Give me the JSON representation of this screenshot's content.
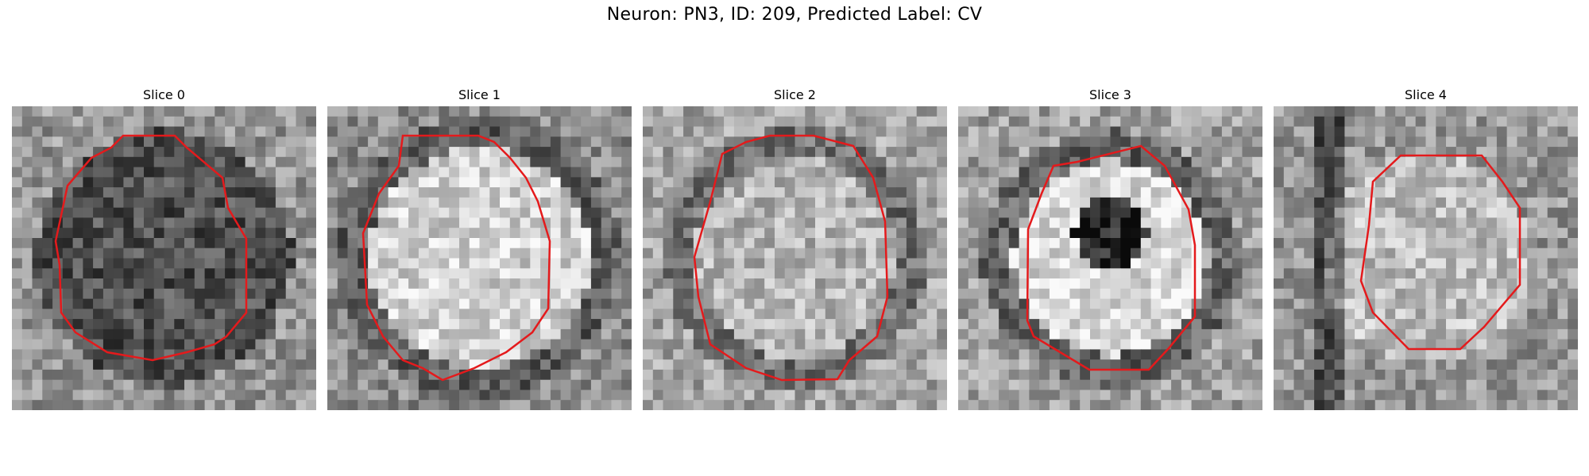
{
  "figure": {
    "title": "Neuron: PN3, ID: 209, Predicted Label: CV",
    "contour_color": "#e41a1c",
    "colormap": "grayscale"
  },
  "panels": [
    {
      "title": "Slice 0",
      "texture": "dark-center"
    },
    {
      "title": "Slice 1",
      "texture": "bright-ring"
    },
    {
      "title": "Slice 2",
      "texture": "grey-ring"
    },
    {
      "title": "Slice 3",
      "texture": "dark-core"
    },
    {
      "title": "Slice 4",
      "texture": "bright-center"
    }
  ]
}
